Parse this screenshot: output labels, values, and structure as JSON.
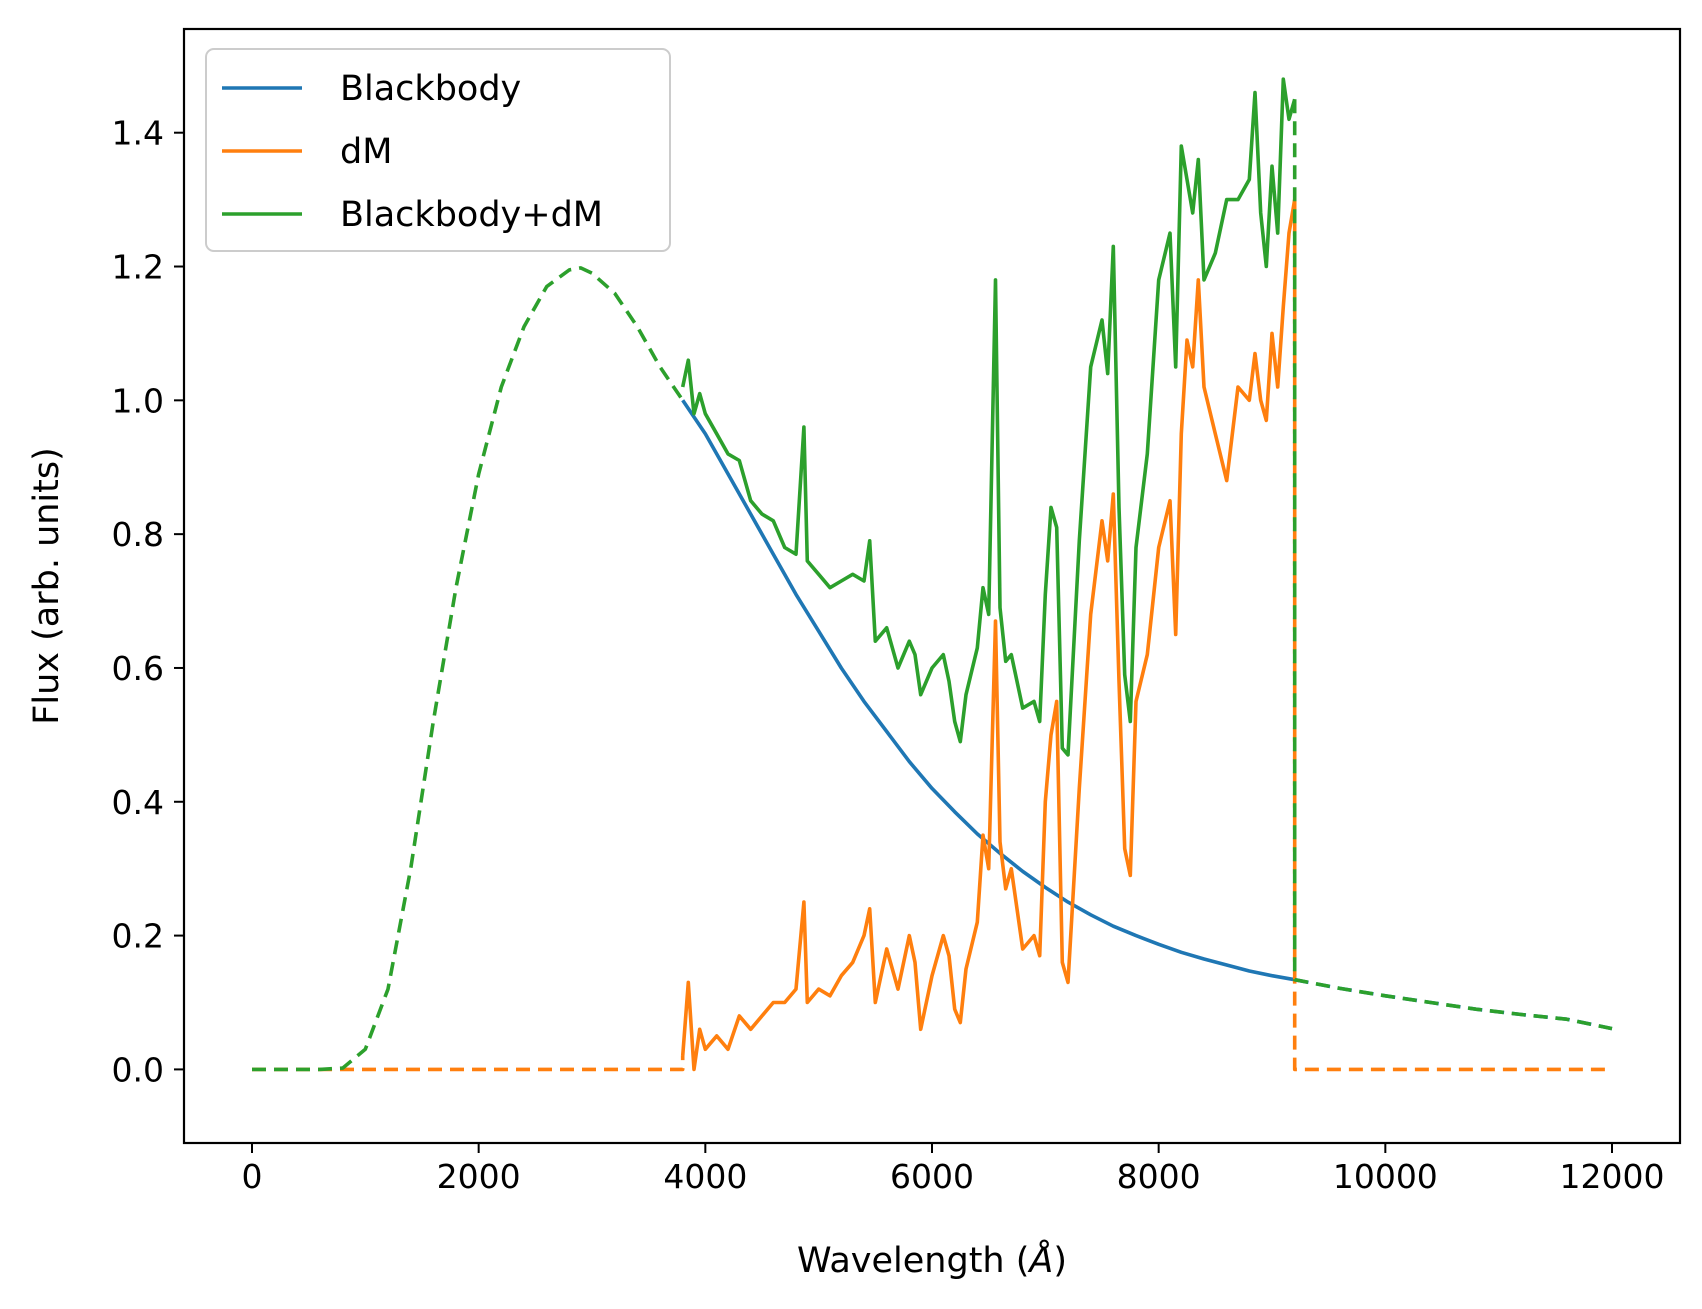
{
  "chart_data": {
    "type": "line",
    "xlabel": "Wavelength (",
    "xlabel_unit": "Å",
    "xlabel_close": ")",
    "ylabel": "Flux (arb. units)",
    "xlim": [
      -600,
      12600
    ],
    "ylim": [
      -0.11,
      1.555
    ],
    "xticks": [
      0,
      2000,
      4000,
      6000,
      8000,
      10000,
      12000
    ],
    "xtick_labels": [
      "0",
      "2000",
      "4000",
      "6000",
      "8000",
      "10000",
      "12000"
    ],
    "yticks": [
      0.0,
      0.2,
      0.4,
      0.6,
      0.8,
      1.0,
      1.2,
      1.4
    ],
    "ytick_labels": [
      "0.0",
      "0.2",
      "0.4",
      "0.6",
      "0.8",
      "1.0",
      "1.2",
      "1.4"
    ],
    "grid": false,
    "legend_position": "top-left",
    "colors": {
      "blackbody": "#1f77b4",
      "dm": "#ff7f0e",
      "sum": "#2ca02c"
    },
    "series": [
      {
        "name": "Blackbody",
        "style": "solid (3800–9200 Å), dashed outside",
        "x": [
          0,
          600,
          800,
          1000,
          1200,
          1400,
          1600,
          1800,
          2000,
          2200,
          2400,
          2600,
          2800,
          2900,
          3000,
          3200,
          3400,
          3600,
          3800,
          4000,
          4200,
          4400,
          4600,
          4800,
          5000,
          5200,
          5400,
          5600,
          5800,
          6000,
          6200,
          6400,
          6600,
          6800,
          7000,
          7200,
          7400,
          7600,
          7800,
          8000,
          8200,
          8400,
          8600,
          8800,
          9000,
          9200,
          9600,
          10000,
          10400,
          10800,
          11200,
          11600,
          12000
        ],
        "y": [
          0.0,
          0.0,
          0.002,
          0.03,
          0.12,
          0.3,
          0.52,
          0.72,
          0.89,
          1.02,
          1.11,
          1.17,
          1.195,
          1.198,
          1.19,
          1.16,
          1.11,
          1.05,
          1.0,
          0.95,
          0.89,
          0.83,
          0.77,
          0.71,
          0.655,
          0.6,
          0.55,
          0.505,
          0.46,
          0.42,
          0.385,
          0.352,
          0.323,
          0.296,
          0.272,
          0.25,
          0.231,
          0.214,
          0.2,
          0.187,
          0.175,
          0.165,
          0.156,
          0.147,
          0.14,
          0.134,
          0.121,
          0.11,
          0.1,
          0.09,
          0.082,
          0.075,
          0.061
        ]
      },
      {
        "name": "dM",
        "style": "solid (3800–9200 Å), dashed zero outside",
        "x": [
          3800,
          3850,
          3900,
          3950,
          4000,
          4100,
          4200,
          4300,
          4400,
          4500,
          4600,
          4700,
          4800,
          4870,
          4900,
          5000,
          5100,
          5200,
          5300,
          5400,
          5450,
          5500,
          5600,
          5700,
          5800,
          5850,
          5900,
          6000,
          6100,
          6150,
          6200,
          6250,
          6300,
          6400,
          6450,
          6500,
          6560,
          6600,
          6650,
          6700,
          6800,
          6900,
          6950,
          7000,
          7050,
          7100,
          7150,
          7200,
          7300,
          7400,
          7500,
          7550,
          7600,
          7650,
          7700,
          7750,
          7800,
          7900,
          8000,
          8100,
          8150,
          8200,
          8250,
          8300,
          8350,
          8400,
          8500,
          8600,
          8700,
          8800,
          8850,
          8900,
          8950,
          9000,
          9050,
          9100,
          9150,
          9200
        ],
        "y": [
          0.02,
          0.13,
          0.0,
          0.06,
          0.03,
          0.05,
          0.03,
          0.08,
          0.06,
          0.08,
          0.1,
          0.1,
          0.12,
          0.25,
          0.1,
          0.12,
          0.11,
          0.14,
          0.16,
          0.2,
          0.24,
          0.1,
          0.18,
          0.12,
          0.2,
          0.16,
          0.06,
          0.14,
          0.2,
          0.17,
          0.09,
          0.07,
          0.15,
          0.22,
          0.35,
          0.3,
          0.67,
          0.34,
          0.27,
          0.3,
          0.18,
          0.2,
          0.17,
          0.4,
          0.5,
          0.55,
          0.16,
          0.13,
          0.42,
          0.68,
          0.82,
          0.76,
          0.86,
          0.58,
          0.33,
          0.29,
          0.55,
          0.62,
          0.78,
          0.85,
          0.65,
          0.95,
          1.09,
          1.05,
          1.18,
          1.02,
          0.95,
          0.88,
          1.02,
          1.0,
          1.07,
          1.0,
          0.97,
          1.1,
          1.02,
          1.14,
          1.25,
          1.3
        ]
      },
      {
        "name": "Blackbody+dM",
        "style": "solid (3800–9200 Å), dashed outside",
        "x": [
          3800,
          3850,
          3900,
          3950,
          4000,
          4100,
          4200,
          4300,
          4400,
          4500,
          4600,
          4700,
          4800,
          4870,
          4900,
          5000,
          5100,
          5200,
          5300,
          5400,
          5450,
          5500,
          5600,
          5700,
          5800,
          5850,
          5900,
          6000,
          6100,
          6150,
          6200,
          6250,
          6300,
          6400,
          6450,
          6500,
          6560,
          6600,
          6650,
          6700,
          6800,
          6900,
          6950,
          7000,
          7050,
          7100,
          7150,
          7200,
          7300,
          7400,
          7500,
          7550,
          7600,
          7650,
          7700,
          7750,
          7800,
          7900,
          8000,
          8100,
          8150,
          8200,
          8250,
          8300,
          8350,
          8400,
          8500,
          8600,
          8700,
          8800,
          8850,
          8900,
          8950,
          9000,
          9050,
          9100,
          9150,
          9200
        ],
        "y": [
          1.02,
          1.06,
          0.98,
          1.01,
          0.98,
          0.95,
          0.92,
          0.91,
          0.85,
          0.83,
          0.82,
          0.78,
          0.77,
          0.96,
          0.76,
          0.74,
          0.72,
          0.73,
          0.74,
          0.73,
          0.79,
          0.64,
          0.66,
          0.6,
          0.64,
          0.62,
          0.56,
          0.6,
          0.62,
          0.58,
          0.52,
          0.49,
          0.56,
          0.63,
          0.72,
          0.68,
          1.18,
          0.69,
          0.61,
          0.62,
          0.54,
          0.55,
          0.52,
          0.71,
          0.84,
          0.81,
          0.48,
          0.47,
          0.79,
          1.05,
          1.12,
          1.04,
          1.23,
          0.84,
          0.59,
          0.52,
          0.78,
          0.92,
          1.18,
          1.25,
          1.05,
          1.38,
          1.33,
          1.28,
          1.36,
          1.18,
          1.22,
          1.3,
          1.3,
          1.33,
          1.46,
          1.28,
          1.2,
          1.35,
          1.25,
          1.48,
          1.42,
          1.45
        ]
      }
    ],
    "legend": [
      "Blackbody",
      "dM",
      "Blackbody+dM"
    ]
  }
}
